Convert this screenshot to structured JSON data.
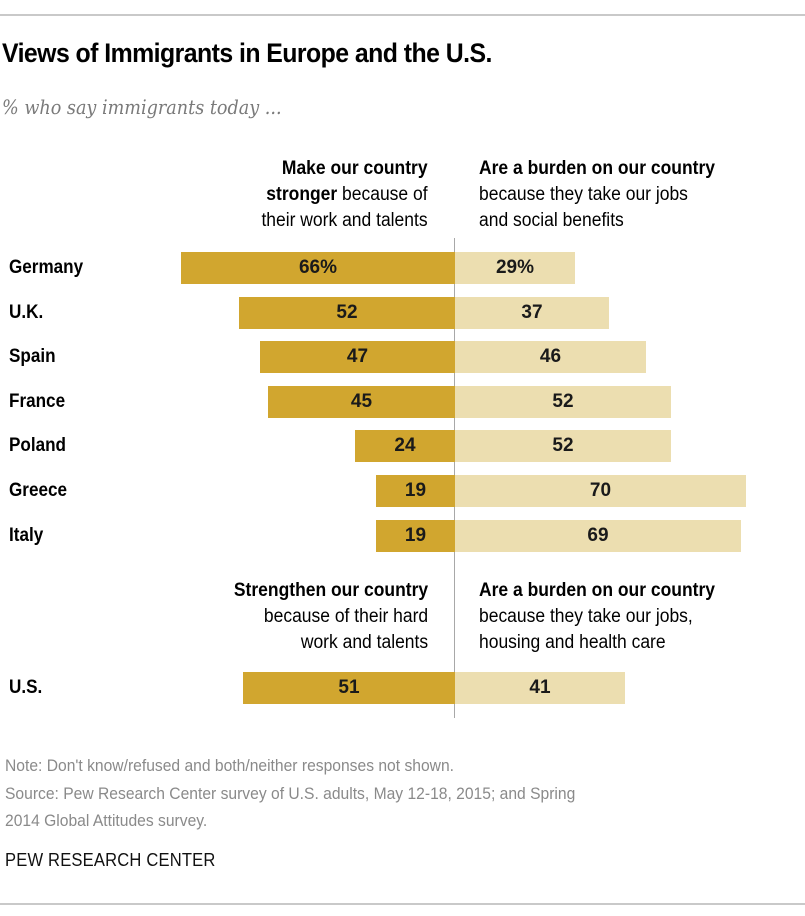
{
  "chart_data": {
    "type": "bar",
    "orientation": "horizontal-diverging",
    "title": "Views of Immigrants in Europe and the U.S.",
    "subtitle": "% who say immigrants today ...",
    "unit": "%",
    "sections": [
      {
        "name": "Europe",
        "left_header": {
          "bold": "Make our country",
          "bold2": "stronger",
          "normal2": " because of",
          "line3": "their work and talents"
        },
        "right_header": {
          "bold": "Are a burden on our country",
          "line2": "because they take our jobs",
          "line3": "and social benefits"
        },
        "categories": [
          "Germany",
          "U.K.",
          "Spain",
          "France",
          "Poland",
          "Greece",
          "Italy"
        ],
        "series": [
          {
            "name": "Make our country stronger",
            "side": "left",
            "color": "#d1a62f",
            "values": [
              66,
              52,
              47,
              45,
              24,
              19,
              19
            ],
            "labels": [
              "66%",
              "52",
              "47",
              "45",
              "24",
              "19",
              "19"
            ]
          },
          {
            "name": "Are a burden on our country",
            "side": "right",
            "color": "#ecdeb0",
            "values": [
              29,
              37,
              46,
              52,
              52,
              70,
              69
            ],
            "labels": [
              "29%",
              "37",
              "46",
              "52",
              "52",
              "70",
              "69"
            ]
          }
        ]
      },
      {
        "name": "United States",
        "left_header": {
          "bold": "Strengthen our country",
          "line2": "because of their hard",
          "line3": "work and talents"
        },
        "right_header": {
          "bold": "Are a burden on our country",
          "line2": "because they take our jobs,",
          "line3": "housing and health care"
        },
        "categories": [
          "U.S."
        ],
        "series": [
          {
            "name": "Strengthen our country",
            "side": "left",
            "color": "#d1a62f",
            "values": [
              51
            ],
            "labels": [
              "51"
            ]
          },
          {
            "name": "Are a burden on our country",
            "side": "right",
            "color": "#ecdeb0",
            "values": [
              41
            ],
            "labels": [
              "41"
            ]
          }
        ]
      }
    ],
    "xlim": [
      0,
      100
    ],
    "grid": false,
    "legend": "none"
  },
  "footer": {
    "note": "Note: Don't know/refused and both/neither responses not shown.",
    "source_line1": "Source: Pew Research Center survey of U.S. adults, May 12-18, 2015; and Spring",
    "source_line2": "2014 Global Attitudes survey.",
    "brand": "PEW RESEARCH CENTER"
  }
}
